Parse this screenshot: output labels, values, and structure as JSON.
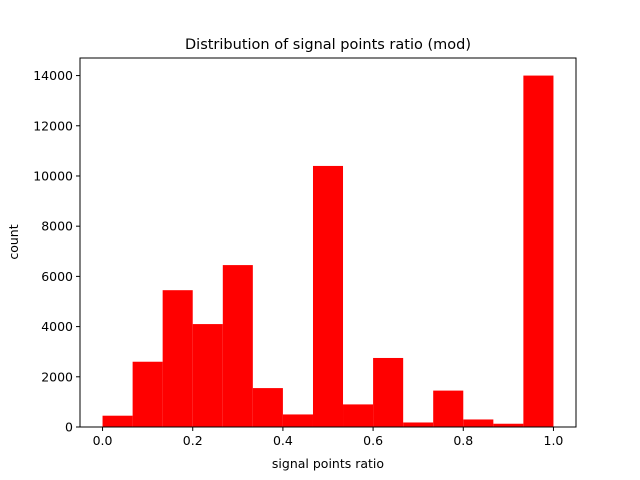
{
  "chart_data": {
    "type": "bar",
    "title": "Distribution of signal points ratio (mod)",
    "xlabel": "signal points ratio",
    "ylabel": "count",
    "xlim": [
      -0.05,
      1.05
    ],
    "ylim": [
      0,
      14700
    ],
    "xticks": [
      "0.0",
      "0.2",
      "0.4",
      "0.6",
      "0.8",
      "1.0"
    ],
    "yticks": [
      "0",
      "2000",
      "4000",
      "6000",
      "8000",
      "10000",
      "12000",
      "14000"
    ],
    "bin_edges": [
      0.0,
      0.0667,
      0.1333,
      0.2,
      0.2667,
      0.3333,
      0.4,
      0.4667,
      0.5333,
      0.6,
      0.6667,
      0.7333,
      0.8,
      0.8667,
      0.9333,
      1.0
    ],
    "values": [
      450,
      2600,
      5450,
      4100,
      6450,
      1550,
      500,
      10400,
      900,
      2750,
      180,
      1450,
      300,
      130,
      14000
    ],
    "color": "#ff0000",
    "grid": false,
    "legend": "none"
  }
}
